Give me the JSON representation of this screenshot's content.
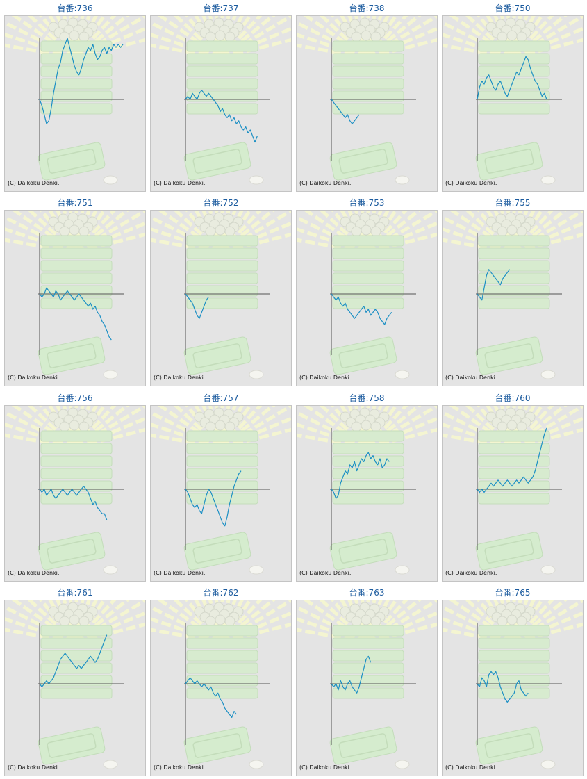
{
  "copyright_text": "(C) Daikoku Denki.",
  "colors": {
    "line": "#1b8fc4",
    "axis": "#555555",
    "title": "#1a5a9e",
    "panel": "#e4e4e4"
  },
  "chart_data": [
    {
      "type": "line",
      "title": "台番:736",
      "values": [
        0,
        -2,
        -5,
        -8,
        -7,
        -3,
        2,
        6,
        10,
        12,
        16,
        18,
        20,
        17,
        14,
        11,
        9,
        8,
        10,
        13,
        15,
        17,
        16,
        18,
        15,
        13,
        14,
        16,
        17,
        15,
        17,
        16,
        18,
        17,
        18,
        17,
        18
      ]
    },
    {
      "type": "line",
      "title": "台番:737",
      "values": [
        0,
        1,
        0,
        2,
        1,
        0,
        2,
        3,
        2,
        1,
        2,
        1,
        0,
        -1,
        -2,
        -4,
        -3,
        -5,
        -6,
        -5,
        -7,
        -6,
        -8,
        -7,
        -9,
        -10,
        -9,
        -11,
        -10,
        -12,
        -14,
        -12
      ]
    },
    {
      "type": "line",
      "title": "台番:738",
      "values": [
        0,
        -1,
        -2,
        -3,
        -4,
        -5,
        -6,
        -5,
        -7,
        -8,
        -7,
        -6,
        -5
      ]
    },
    {
      "type": "line",
      "title": "台番:750",
      "values": [
        0,
        4,
        6,
        5,
        7,
        8,
        6,
        4,
        3,
        5,
        6,
        4,
        2,
        1,
        3,
        5,
        7,
        9,
        8,
        10,
        12,
        14,
        13,
        10,
        8,
        6,
        5,
        3,
        1,
        2,
        0
      ]
    },
    {
      "type": "line",
      "title": "台番:751",
      "values": [
        0,
        -1,
        0,
        2,
        1,
        0,
        -1,
        1,
        0,
        -2,
        -1,
        0,
        1,
        0,
        -1,
        -2,
        -1,
        0,
        -1,
        -2,
        -3,
        -4,
        -3,
        -5,
        -4,
        -6,
        -7,
        -9,
        -10,
        -12,
        -14,
        -15
      ]
    },
    {
      "type": "line",
      "title": "台番:752",
      "values": [
        0,
        -1,
        -2,
        -3,
        -5,
        -7,
        -8,
        -6,
        -4,
        -2,
        -1
      ]
    },
    {
      "type": "line",
      "title": "台番:753",
      "values": [
        0,
        -1,
        -2,
        -1,
        -3,
        -4,
        -3,
        -5,
        -6,
        -7,
        -8,
        -7,
        -6,
        -5,
        -4,
        -6,
        -5,
        -7,
        -6,
        -5,
        -6,
        -8,
        -9,
        -10,
        -8,
        -7,
        -6
      ]
    },
    {
      "type": "line",
      "title": "台番:755",
      "values": [
        0,
        -1,
        -2,
        2,
        6,
        8,
        7,
        6,
        5,
        4,
        3,
        5,
        6,
        7,
        8
      ]
    },
    {
      "type": "line",
      "title": "台番:756",
      "values": [
        0,
        -1,
        0,
        -2,
        -1,
        0,
        -2,
        -3,
        -2,
        -1,
        0,
        -1,
        -2,
        -1,
        0,
        -1,
        -2,
        -1,
        0,
        1,
        0,
        -1,
        -3,
        -5,
        -4,
        -6,
        -7,
        -8,
        -8,
        -10
      ]
    },
    {
      "type": "line",
      "title": "台番:757",
      "values": [
        0,
        -1,
        -3,
        -5,
        -6,
        -5,
        -7,
        -8,
        -5,
        -2,
        0,
        -1,
        -3,
        -5,
        -7,
        -9,
        -11,
        -12,
        -9,
        -5,
        -2,
        1,
        3,
        5,
        6
      ]
    },
    {
      "type": "line",
      "title": "台番:758",
      "values": [
        0,
        -1,
        -3,
        -2,
        2,
        4,
        6,
        5,
        8,
        7,
        9,
        6,
        8,
        10,
        9,
        11,
        12,
        10,
        11,
        9,
        8,
        10,
        7,
        8,
        10,
        9
      ]
    },
    {
      "type": "line",
      "title": "台番:760",
      "values": [
        0,
        -1,
        0,
        -1,
        0,
        1,
        2,
        1,
        2,
        3,
        2,
        1,
        2,
        3,
        2,
        1,
        2,
        3,
        2,
        3,
        4,
        3,
        2,
        3,
        4,
        6,
        9,
        12,
        15,
        18,
        20
      ]
    },
    {
      "type": "line",
      "title": "台番:761",
      "values": [
        0,
        -1,
        0,
        1,
        0,
        1,
        2,
        4,
        6,
        8,
        9,
        10,
        9,
        8,
        7,
        6,
        5,
        6,
        5,
        6,
        7,
        8,
        9,
        8,
        7,
        8,
        10,
        12,
        14,
        16
      ]
    },
    {
      "type": "line",
      "title": "台番:762",
      "values": [
        0,
        1,
        2,
        1,
        0,
        1,
        0,
        -1,
        0,
        -1,
        -2,
        -1,
        -3,
        -4,
        -3,
        -5,
        -6,
        -8,
        -9,
        -10,
        -11,
        -9,
        -10
      ]
    },
    {
      "type": "line",
      "title": "台番:763",
      "values": [
        0,
        -1,
        0,
        -2,
        1,
        -1,
        -2,
        0,
        1,
        -1,
        -2,
        -3,
        -1,
        2,
        5,
        8,
        9,
        7
      ]
    },
    {
      "type": "line",
      "title": "台番:765",
      "values": [
        0,
        -1,
        2,
        1,
        -1,
        3,
        4,
        3,
        4,
        2,
        -1,
        -3,
        -5,
        -6,
        -5,
        -4,
        -3,
        0,
        1,
        -2,
        -3,
        -4,
        -3
      ]
    }
  ]
}
